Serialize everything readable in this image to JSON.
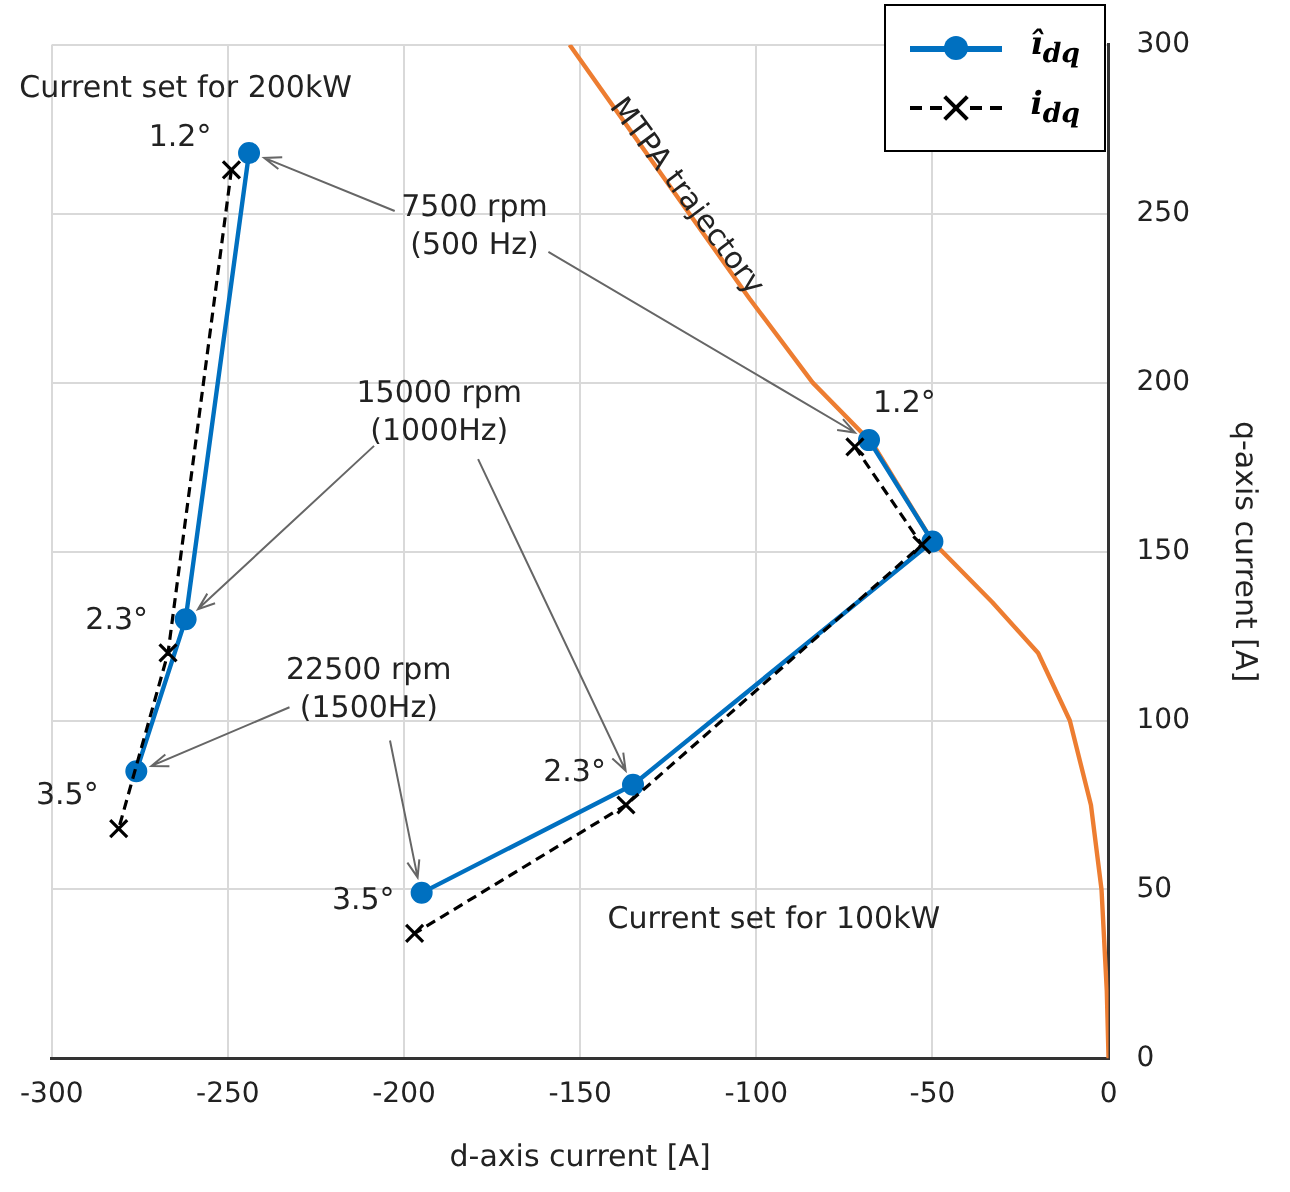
{
  "chart_data": {
    "type": "line",
    "xlabel": "d-axis current [A]",
    "ylabel": "q-axis current [A]",
    "xlim": [
      -300,
      0
    ],
    "xticks": [
      -300,
      -250,
      -200,
      -150,
      -100,
      -50,
      0
    ],
    "ylim": [
      0,
      300
    ],
    "yticks": [
      0,
      50,
      100,
      150,
      200,
      250,
      300
    ],
    "grid": true,
    "legend": "top right",
    "series": [
      {
        "name": "î$_{dq}$",
        "color": "#0070c0",
        "marker": "circle",
        "line_style": "solid",
        "x": [
          -244,
          -262,
          -276
        ],
        "values": [
          268,
          130,
          85
        ]
      },
      {
        "name": "i$_{dq}$",
        "color": "#000000",
        "marker": "cross",
        "line_style": "dashed",
        "x": [
          -249,
          -267,
          -281
        ],
        "values": [
          263,
          120,
          68
        ]
      },
      {
        "color": "#0070c0",
        "marker": "circle",
        "line_style": "solid",
        "x": [
          -68,
          -50,
          -135,
          -195
        ],
        "values": [
          183,
          153,
          81,
          49
        ]
      },
      {
        "color": "#000000",
        "marker": "cross",
        "line_style": "dashed",
        "x": [
          -72,
          -53,
          -137,
          -197
        ],
        "values": [
          181,
          152,
          75,
          37
        ]
      },
      {
        "color": "#ed7d31",
        "marker": "none",
        "line_style": "solid",
        "x": [
          0,
          -0.5,
          -2,
          -5,
          -11,
          -20,
          -33,
          -50,
          -67,
          -84,
          -102,
          -119,
          -136,
          -153
        ],
        "values": [
          0,
          20,
          50,
          75,
          100,
          120,
          135,
          153,
          182,
          200,
          225,
          250,
          275,
          300
        ]
      }
    ],
    "annotations": [
      "Current set for 200kW",
      "Current set for 100kW",
      "MTPA trajectory",
      {
        "text": "7500 rpm\n(500 Hz)",
        "x": -68,
        "y": 183
      },
      {
        "text": "15000 rpm\n(1000Hz)",
        "x": -135,
        "y": 81
      },
      {
        "text": "22500 rpm\n(1500Hz)",
        "x": -195,
        "y": 49
      },
      {
        "text": "1.2°",
        "x": -249,
        "y": 263
      },
      {
        "text": "2.3°",
        "x": -267,
        "y": 120
      },
      {
        "text": "3.5°",
        "x": -281,
        "y": 68
      },
      {
        "text": "1.2°",
        "x": -68,
        "y": 183
      },
      {
        "text": "2.3°",
        "x": -137,
        "y": 75
      },
      {
        "text": "3.5°",
        "x": -197,
        "y": 37
      }
    ]
  }
}
